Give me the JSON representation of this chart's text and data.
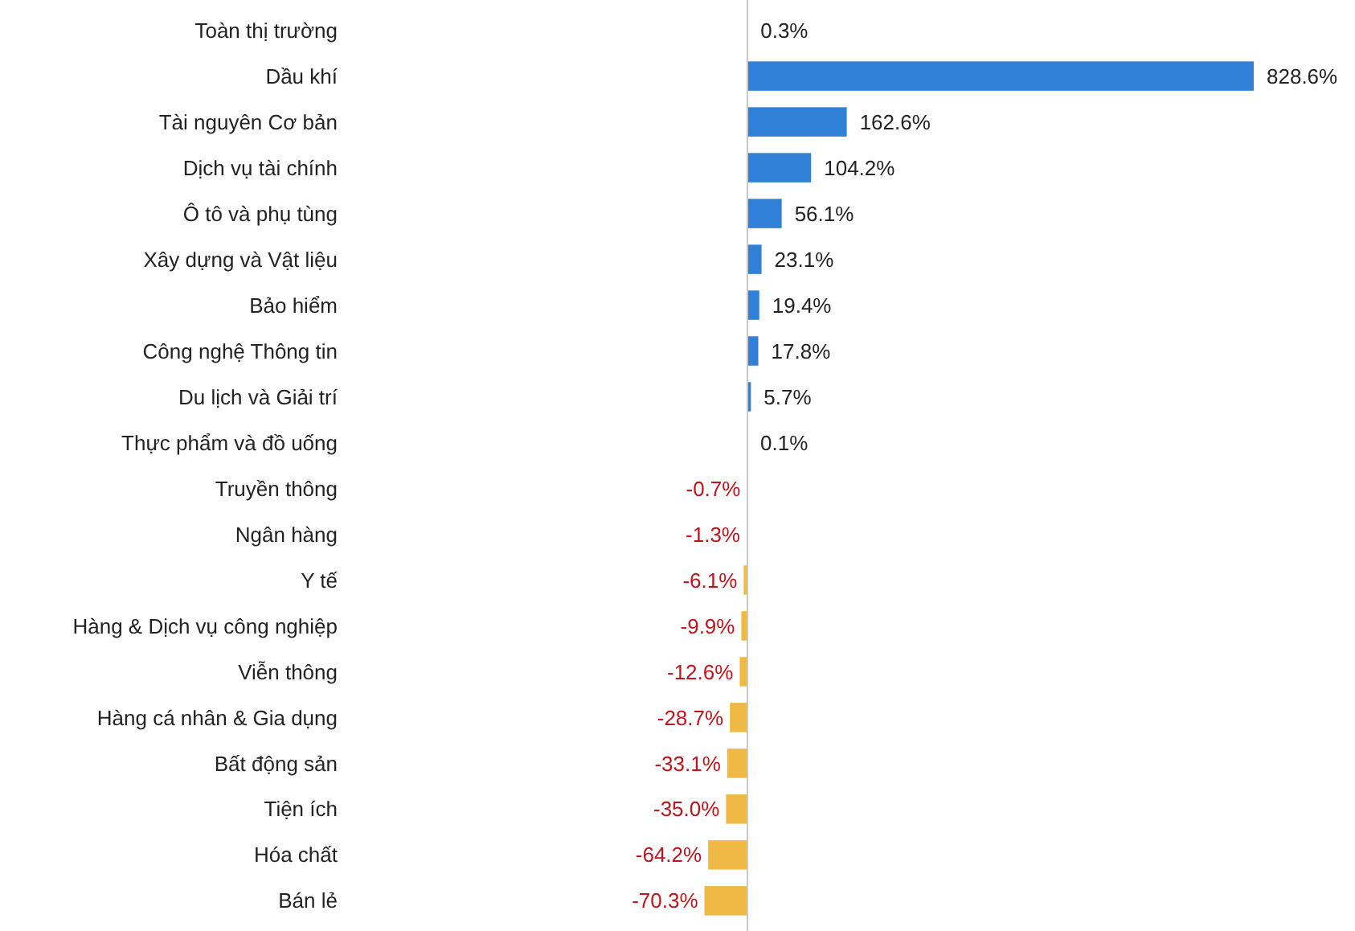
{
  "chart_data": {
    "type": "bar",
    "orientation": "horizontal",
    "categories": [
      "Toàn thị trường",
      "Dầu khí",
      "Tài nguyên Cơ bản",
      "Dịch vụ tài chính",
      "Ô tô và phụ tùng",
      "Xây dựng và Vật liệu",
      "Bảo hiểm",
      "Công nghệ Thông tin",
      "Du lịch và Giải trí",
      "Thực phẩm và đồ uống",
      "Truyền thông",
      "Ngân hàng",
      "Y tế",
      "Hàng & Dịch vụ công nghiệp",
      "Viễn thông",
      "Hàng cá nhân & Gia dụng",
      "Bất động sản",
      "Tiện ích",
      "Hóa chất",
      "Bán lẻ"
    ],
    "values": [
      0.3,
      828.6,
      162.6,
      104.2,
      56.1,
      23.1,
      19.4,
      17.8,
      5.7,
      0.1,
      -0.7,
      -1.3,
      -6.1,
      -9.9,
      -12.6,
      -28.7,
      -33.1,
      -35.0,
      -64.2,
      -70.3
    ],
    "value_labels": [
      "0.3%",
      "828.6%",
      "162.6%",
      "104.2%",
      "56.1%",
      "23.1%",
      "19.4%",
      "17.8%",
      "5.7%",
      "0.1%",
      "-0.7%",
      "-1.3%",
      "-6.1%",
      "-9.9%",
      "-12.6%",
      "-28.7%",
      "-33.1%",
      "-35.0%",
      "-64.2%",
      "-70.3%"
    ],
    "colors": [
      "#2f80d6",
      "#2f80d6",
      "#2f80d6",
      "#2f80d6",
      "#2f80d6",
      "#2f80d6",
      "#2f80d6",
      "#2f80d6",
      "#2f80d6",
      "#2f80d6",
      "#f0b845",
      "#f0b845",
      "#f0b845",
      "#f0b845",
      "#f0b845",
      "#f0b845",
      "#f0b845",
      "#f0b845",
      "#f0b845",
      "#f0b845"
    ]
  }
}
